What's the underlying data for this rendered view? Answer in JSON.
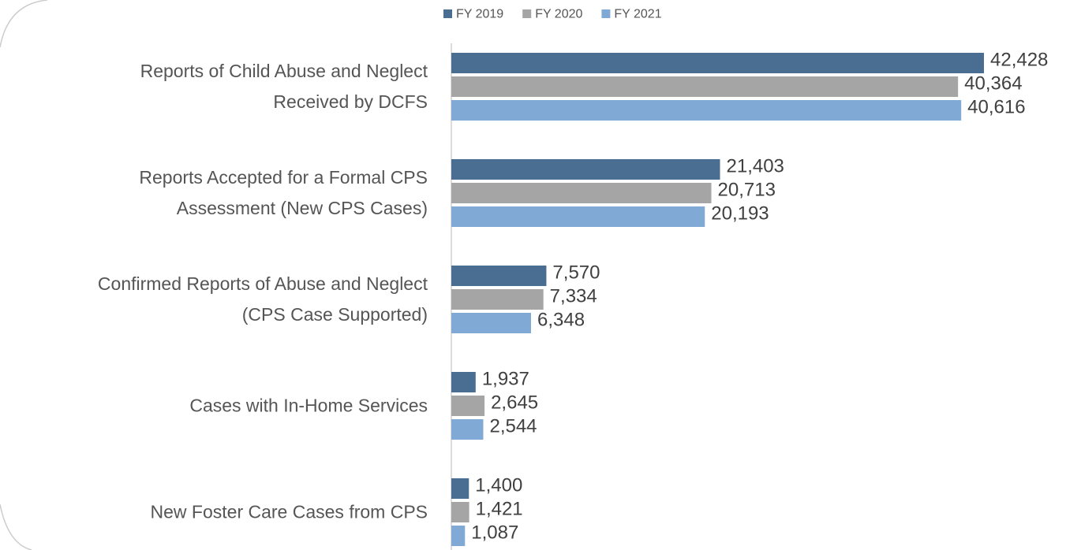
{
  "chart_data": {
    "type": "bar",
    "orientation": "horizontal",
    "categories": [
      "Reports of Child Abuse and Neglect\nReceived by DCFS",
      "Reports Accepted for a Formal CPS\nAssessment (New CPS Cases)",
      "Confirmed Reports of Abuse and Neglect\n(CPS Case Supported)",
      "Cases with In-Home Services",
      "New Foster Care Cases from CPS"
    ],
    "series": [
      {
        "name": "FY 2019",
        "color": "#4a6e91",
        "values": [
          42428,
          21403,
          7570,
          1937,
          1400
        ],
        "value_labels": [
          "42,428",
          "21,403",
          "7,570",
          "1,937",
          "1,400"
        ]
      },
      {
        "name": "FY 2020",
        "color": "#a5a5a5",
        "values": [
          40364,
          20713,
          7334,
          2645,
          1421
        ],
        "value_labels": [
          "40,364",
          "20,713",
          "7,334",
          "2,645",
          "1,421"
        ]
      },
      {
        "name": "FY 2021",
        "color": "#80a9d6",
        "values": [
          40616,
          20193,
          6348,
          2544,
          1087
        ],
        "value_labels": [
          "40,616",
          "20,193",
          "6,348",
          "2,544",
          "1,087"
        ]
      }
    ],
    "legend": "top"
  }
}
